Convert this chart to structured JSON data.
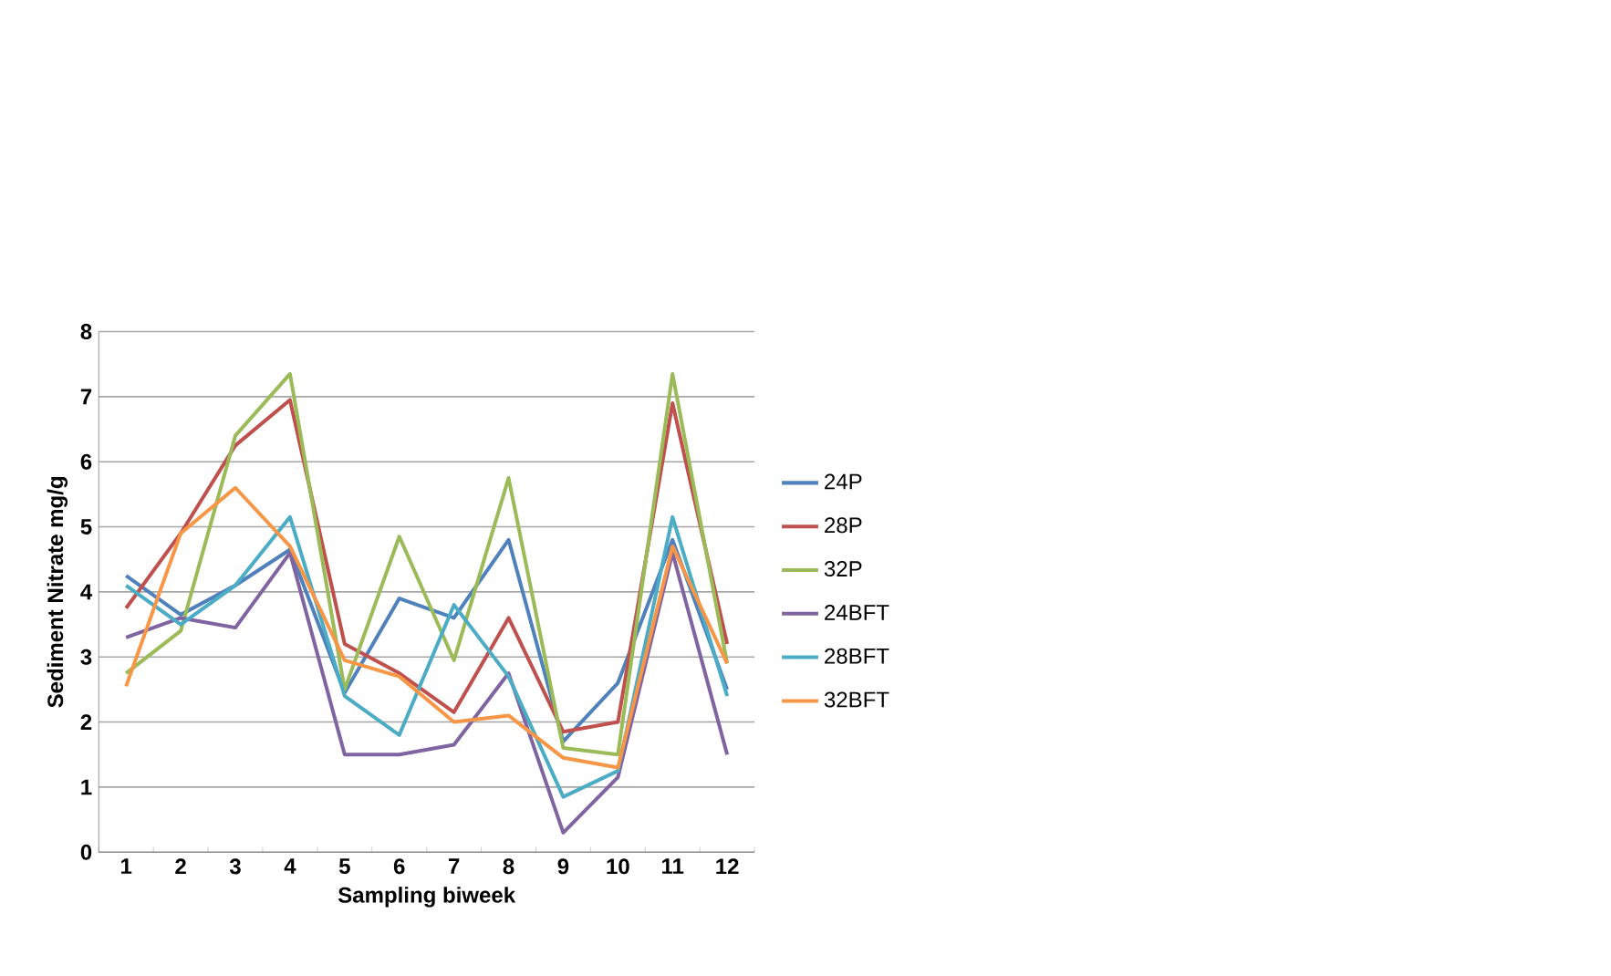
{
  "chart_data": {
    "type": "line",
    "xlabel": "Sampling biweek",
    "ylabel": "Sediment Nitrate mg/g",
    "categories": [
      "1",
      "2",
      "3",
      "4",
      "5",
      "6",
      "7",
      "8",
      "9",
      "10",
      "11",
      "12"
    ],
    "series": [
      {
        "name": "24P",
        "color": "#4f81bd",
        "values": [
          4.25,
          3.65,
          4.1,
          4.65,
          2.45,
          3.9,
          3.6,
          4.8,
          1.7,
          2.6,
          4.8,
          2.5
        ]
      },
      {
        "name": "28P",
        "color": "#c0504d",
        "values": [
          3.75,
          4.9,
          6.25,
          6.95,
          3.2,
          2.75,
          2.15,
          3.6,
          1.85,
          2.0,
          6.9,
          3.2
        ]
      },
      {
        "name": "32P",
        "color": "#9bbb59",
        "values": [
          2.75,
          3.4,
          6.4,
          7.35,
          2.5,
          4.85,
          2.95,
          5.75,
          1.6,
          1.5,
          7.35,
          2.9
        ]
      },
      {
        "name": "24BFT",
        "color": "#8064a2",
        "values": [
          3.3,
          3.6,
          3.45,
          4.6,
          1.5,
          1.5,
          1.65,
          2.75,
          0.3,
          1.15,
          4.6,
          1.5
        ]
      },
      {
        "name": "28BFT",
        "color": "#4bacc6",
        "values": [
          4.1,
          3.5,
          4.1,
          5.15,
          2.4,
          1.8,
          3.8,
          2.7,
          0.85,
          1.25,
          5.15,
          2.4
        ]
      },
      {
        "name": "32BFT",
        "color": "#f79646",
        "values": [
          2.55,
          4.9,
          5.6,
          4.7,
          2.95,
          2.7,
          2.0,
          2.1,
          1.45,
          1.3,
          4.7,
          2.9
        ]
      }
    ],
    "ylim": [
      0,
      8
    ],
    "yticks": [
      0,
      1,
      2,
      3,
      4,
      5,
      6,
      7,
      8
    ],
    "grid": "y",
    "legend": "right",
    "marker": "none",
    "line_style": "solid"
  }
}
